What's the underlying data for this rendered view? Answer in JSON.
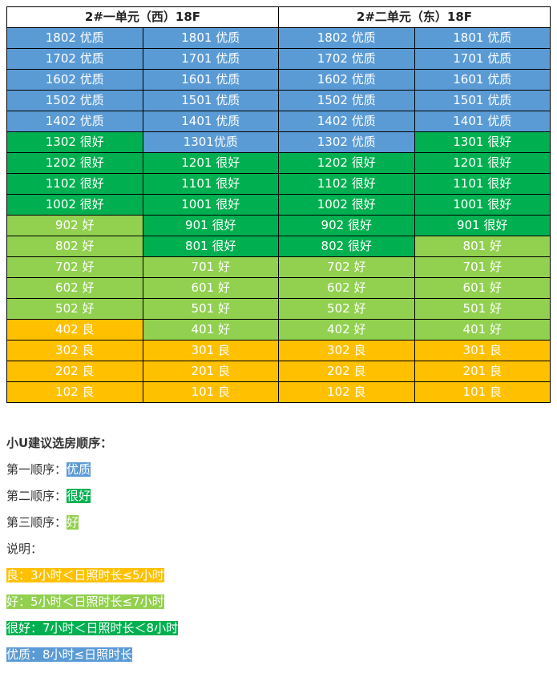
{
  "colors": {
    "excellent": "#5b9bd5",
    "verygood": "#00b050",
    "good": "#92d050",
    "fair": "#ffc000"
  },
  "table": {
    "headers": [
      "2#一单元（西）18F",
      "2#二单元（东）18F"
    ],
    "rows": [
      [
        [
          "1802 优质",
          "excellent"
        ],
        [
          "1801 优质",
          "excellent"
        ],
        [
          "1802 优质",
          "excellent"
        ],
        [
          "1801 优质",
          "excellent"
        ]
      ],
      [
        [
          "1702 优质",
          "excellent"
        ],
        [
          "1701 优质",
          "excellent"
        ],
        [
          "1702 优质",
          "excellent"
        ],
        [
          "1701 优质",
          "excellent"
        ]
      ],
      [
        [
          "1602 优质",
          "excellent"
        ],
        [
          "1601 优质",
          "excellent"
        ],
        [
          "1602 优质",
          "excellent"
        ],
        [
          "1601 优质",
          "excellent"
        ]
      ],
      [
        [
          "1502 优质",
          "excellent"
        ],
        [
          "1501 优质",
          "excellent"
        ],
        [
          "1502 优质",
          "excellent"
        ],
        [
          "1501 优质",
          "excellent"
        ]
      ],
      [
        [
          "1402 优质",
          "excellent"
        ],
        [
          "1401 优质",
          "excellent"
        ],
        [
          "1402 优质",
          "excellent"
        ],
        [
          "1401 优质",
          "excellent"
        ]
      ],
      [
        [
          "1302 很好",
          "verygood"
        ],
        [
          "1301优质",
          "excellent"
        ],
        [
          "1302 优质",
          "excellent"
        ],
        [
          "1301 很好",
          "verygood"
        ]
      ],
      [
        [
          "1202 很好",
          "verygood"
        ],
        [
          "1201 很好",
          "verygood"
        ],
        [
          "1202 很好",
          "verygood"
        ],
        [
          "1201 很好",
          "verygood"
        ]
      ],
      [
        [
          "1102 很好",
          "verygood"
        ],
        [
          "1101 很好",
          "verygood"
        ],
        [
          "1102 很好",
          "verygood"
        ],
        [
          "1101 很好",
          "verygood"
        ]
      ],
      [
        [
          "1002 很好",
          "verygood"
        ],
        [
          "1001 很好",
          "verygood"
        ],
        [
          "1002 很好",
          "verygood"
        ],
        [
          "1001 很好",
          "verygood"
        ]
      ],
      [
        [
          "902 好",
          "good"
        ],
        [
          "901 很好",
          "verygood"
        ],
        [
          "902 很好",
          "verygood"
        ],
        [
          "901 很好",
          "verygood"
        ]
      ],
      [
        [
          "802 好",
          "good"
        ],
        [
          "801 很好",
          "verygood"
        ],
        [
          "802 很好",
          "verygood"
        ],
        [
          "801 好",
          "good"
        ]
      ],
      [
        [
          "702 好",
          "good"
        ],
        [
          "701 好",
          "good"
        ],
        [
          "702 好",
          "good"
        ],
        [
          "701 好",
          "good"
        ]
      ],
      [
        [
          "602 好",
          "good"
        ],
        [
          "601 好",
          "good"
        ],
        [
          "602 好",
          "good"
        ],
        [
          "601 好",
          "good"
        ]
      ],
      [
        [
          "502 好",
          "good"
        ],
        [
          "501 好",
          "good"
        ],
        [
          "502 好",
          "good"
        ],
        [
          "501 好",
          "good"
        ]
      ],
      [
        [
          "402 良",
          "fair"
        ],
        [
          "401 好",
          "good"
        ],
        [
          "402 好",
          "good"
        ],
        [
          "401 好",
          "good"
        ]
      ],
      [
        [
          "302 良",
          "fair"
        ],
        [
          "301 良",
          "fair"
        ],
        [
          "302 良",
          "fair"
        ],
        [
          "301 良",
          "fair"
        ]
      ],
      [
        [
          "202 良",
          "fair"
        ],
        [
          "201 良",
          "fair"
        ],
        [
          "202 良",
          "fair"
        ],
        [
          "201 良",
          "fair"
        ]
      ],
      [
        [
          "102 良",
          "fair"
        ],
        [
          "101 良",
          "fair"
        ],
        [
          "102 良",
          "fair"
        ],
        [
          "101 良",
          "fair"
        ]
      ]
    ]
  },
  "notes": {
    "title": "小U建议选房顺序：",
    "orders": [
      {
        "label": "第一顺序：",
        "value": "优质",
        "grade": "excellent"
      },
      {
        "label": "第二顺序：",
        "value": "很好",
        "grade": "verygood"
      },
      {
        "label": "第三顺序：",
        "value": "好",
        "grade": "good"
      }
    ],
    "explain_label": "说明：",
    "legend": [
      {
        "text": "良：3小时＜日照时长≤5小时",
        "grade": "fair"
      },
      {
        "text": "好：5小时＜日照时长≤7小时",
        "grade": "good"
      },
      {
        "text": "很好：7小时＜日照时长＜8小时",
        "grade": "verygood"
      },
      {
        "text": "优质：8小时≤日照时长",
        "grade": "excellent"
      }
    ]
  }
}
